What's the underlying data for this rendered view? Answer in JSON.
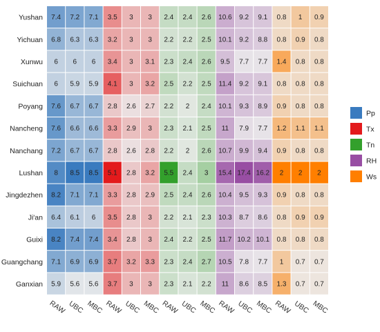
{
  "chart_data": {
    "type": "heatmap",
    "rows": [
      "Yushan",
      "Yichuan",
      "Xunwu",
      "Suichuan",
      "Poyang",
      "Nancheng",
      "Nanchang",
      "Lushan",
      "Jingdezhen",
      "Ji'an",
      "Guixi",
      "Guangchang",
      "Ganxian"
    ],
    "columns": [
      "RAW",
      "UBC",
      "MBC",
      "RAW",
      "UBC",
      "MBC",
      "RAW",
      "UBC",
      "MBC",
      "RAW",
      "UBC",
      "MBC",
      "RAW",
      "UBC",
      "MBC"
    ],
    "variables": [
      {
        "name": "Pp",
        "color": "#3a7bbf"
      },
      {
        "name": "Tx",
        "color": "#e31a1c"
      },
      {
        "name": "Tn",
        "color": "#33a02c"
      },
      {
        "name": "RH",
        "color": "#984ea3"
      },
      {
        "name": "Ws",
        "color": "#ff7f00"
      }
    ],
    "values": [
      [
        7.4,
        7.2,
        7.1,
        3.5,
        3,
        3,
        2.4,
        2.4,
        2.6,
        10.6,
        9.2,
        9.1,
        0.8,
        1,
        0.9
      ],
      [
        6.8,
        6.3,
        6.3,
        3.2,
        3,
        3,
        2.2,
        2.2,
        2.5,
        10.1,
        9.2,
        8.8,
        0.8,
        0.9,
        0.8
      ],
      [
        6,
        6,
        6,
        3.4,
        3,
        3.1,
        2.3,
        2.4,
        2.6,
        9.5,
        7.7,
        7.7,
        1.4,
        0.8,
        0.8
      ],
      [
        6,
        5.9,
        5.9,
        4.1,
        3,
        3.2,
        2.5,
        2.2,
        2.5,
        11.4,
        9.2,
        9.1,
        0.8,
        0.8,
        0.8
      ],
      [
        7.6,
        6.7,
        6.7,
        2.8,
        2.6,
        2.7,
        2.2,
        2,
        2.4,
        10.1,
        9.3,
        8.9,
        0.9,
        0.8,
        0.8
      ],
      [
        7.6,
        6.6,
        6.6,
        3.3,
        2.9,
        3,
        2.3,
        2.1,
        2.5,
        11,
        7.9,
        7.7,
        1.2,
        1.1,
        1.1
      ],
      [
        7.2,
        6.7,
        6.7,
        2.8,
        2.6,
        2.8,
        2.2,
        2,
        2.6,
        10.7,
        9.9,
        9.4,
        0.9,
        0.8,
        0.8
      ],
      [
        8,
        8.5,
        8.5,
        5.1,
        2.8,
        3.2,
        5.5,
        2.4,
        3,
        15.4,
        17.4,
        16.2,
        2,
        2,
        2
      ],
      [
        8.2,
        7.1,
        7.1,
        3.3,
        2.8,
        2.9,
        2.5,
        2.4,
        2.6,
        10.4,
        9.5,
        9.3,
        0.9,
        0.8,
        0.8
      ],
      [
        6.4,
        6.1,
        6,
        3.5,
        2.8,
        3,
        2.2,
        2.1,
        2.3,
        10.3,
        8.7,
        8.6,
        0.8,
        0.9,
        0.9
      ],
      [
        8.2,
        7.4,
        7.4,
        3.4,
        2.8,
        3,
        2.4,
        2.2,
        2.5,
        11.7,
        10.2,
        10.1,
        0.8,
        0.8,
        0.8
      ],
      [
        7.1,
        6.9,
        6.9,
        3.7,
        3.2,
        3.3,
        2.3,
        2.4,
        2.7,
        10.5,
        7.8,
        7.7,
        1,
        0.7,
        0.7
      ],
      [
        5.9,
        5.6,
        5.6,
        3.7,
        3,
        3,
        2.3,
        2.1,
        2.2,
        11,
        8.6,
        8.5,
        1.3,
        0.7,
        0.7
      ]
    ],
    "legend": "right",
    "grid": false
  }
}
